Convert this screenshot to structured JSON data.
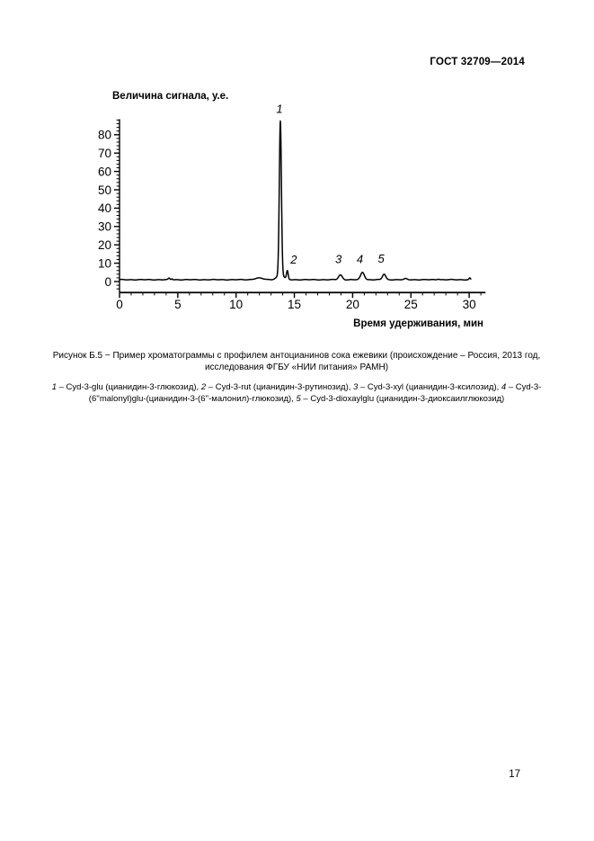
{
  "page": {
    "header": "ГОСТ 32709—2014",
    "page_number": "17",
    "caption": "Рисунок Б.5 − Пример хроматограммы с профилем антоцианинов сока ежевики (происхождение – Россия, 2013 год, исследования ФГБУ «НИИ питания» РАМН)",
    "legend_items": [
      {
        "num": "1",
        "text": "Cyd-3-glu (цианидин-3-глюкозид)"
      },
      {
        "num": "2",
        "text": "Cyd-3-rut (цианидин-3-рутинозид)"
      },
      {
        "num": "3",
        "text": "Cyd-3-xyl (цианидин-3-ксилозид)"
      },
      {
        "num": "4",
        "text": "Cyd-3-(6''malonyl)glu-(цианидин-3-(6''-малонил)-глюкозид)"
      },
      {
        "num": "5",
        "text": "Cyd-3-dioxaylglu (цианидин-3-диоксаилглюкозид)"
      }
    ]
  },
  "chart_data": {
    "type": "line",
    "chart_kind": "chromatogram",
    "title": "",
    "xlabel": "Время удерживания, мин",
    "ylabel": "Величина сигнала, у.е.",
    "xlim": [
      0,
      31.4
    ],
    "ylim": [
      -6,
      88.5
    ],
    "x_major_ticks": [
      0,
      5,
      10,
      15,
      20,
      25,
      30
    ],
    "y_major_ticks": [
      0,
      10,
      20,
      30,
      40,
      50,
      60,
      70,
      80
    ],
    "x_minor_step": 1,
    "y_minor_step": 2,
    "grid": false,
    "legend_position": "none",
    "line_color": "#000000",
    "baseline_signal": 1.0,
    "trace_start_min": 0,
    "trace_end_min": 30.15,
    "peaks": [
      {
        "label": "1",
        "t_min": 13.8,
        "height": 84,
        "sigma_min": 0.09,
        "label_t": 13.72,
        "label_v": 94
      },
      {
        "label": "2",
        "t_min": 14.4,
        "height": 4.5,
        "sigma_min": 0.07,
        "label_t": 14.95,
        "label_v": 12
      },
      {
        "label": "3",
        "t_min": 18.95,
        "height": 2.6,
        "sigma_min": 0.16,
        "label_t": 18.78,
        "label_v": 12.3
      },
      {
        "label": "4",
        "t_min": 20.85,
        "height": 4.0,
        "sigma_min": 0.16,
        "label_t": 20.62,
        "label_v": 12.3
      },
      {
        "label": "5",
        "t_min": 22.7,
        "height": 3.0,
        "sigma_min": 0.14,
        "label_t": 22.45,
        "label_v": 12.5
      }
    ],
    "baseline_features": [
      {
        "t_min": 4.25,
        "height": 0.8,
        "sigma_min": 0.07
      },
      {
        "t_min": 4.5,
        "height": 0.5,
        "sigma_min": 0.05
      },
      {
        "t_min": 11.95,
        "height": 0.9,
        "sigma_min": 0.35
      },
      {
        "t_min": 13.8,
        "height": 2.5,
        "sigma_min": 0.3
      },
      {
        "t_min": 24.55,
        "height": 0.55,
        "sigma_min": 0.12
      },
      {
        "t_min": 27.35,
        "height": 0.4,
        "sigma_min": 0.1
      },
      {
        "t_min": 30.05,
        "height": 0.9,
        "sigma_min": 0.06
      }
    ]
  }
}
